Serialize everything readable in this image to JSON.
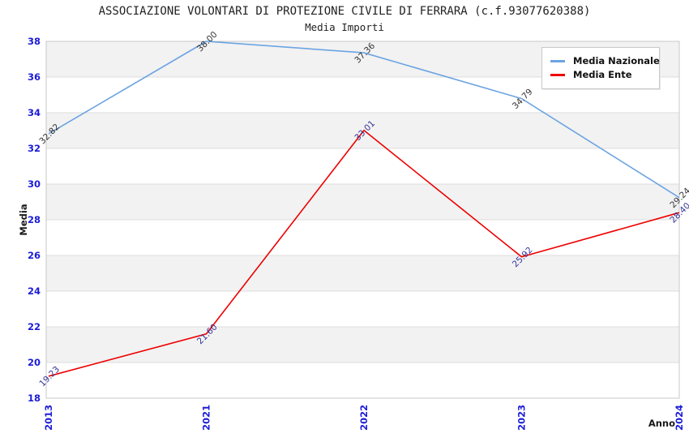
{
  "chart_data": {
    "type": "line",
    "title": "ASSOCIAZIONE VOLONTARI DI PROTEZIONE CIVILE DI FERRARA (c.f.93077620388)",
    "subtitle": "Media Importi",
    "xlabel": "Anno",
    "ylabel": "Media",
    "categories": [
      "2013",
      "2021",
      "2022",
      "2023",
      "2024"
    ],
    "series": [
      {
        "name": "Media Nazionale",
        "color": "#6ca4e2",
        "label_color": "#333333",
        "values": [
          32.82,
          38.0,
          37.36,
          34.79,
          29.24
        ]
      },
      {
        "name": "Media Ente",
        "color": "#ee0000",
        "label_color": "#333399",
        "values": [
          19.23,
          21.6,
          33.01,
          25.92,
          28.4
        ]
      }
    ],
    "ylim": [
      18,
      38
    ],
    "ytick_step": 2,
    "grid": "horizontal-bands-alternating",
    "legend_position": "top-right",
    "colors": {
      "band": "#f2f2f2",
      "band_alt": "#ffffff",
      "grid": "#dcdcdc",
      "border": "#c8c8c8",
      "tick_label": "#1c1cd8",
      "axis_title": "#1a1a1a"
    }
  }
}
